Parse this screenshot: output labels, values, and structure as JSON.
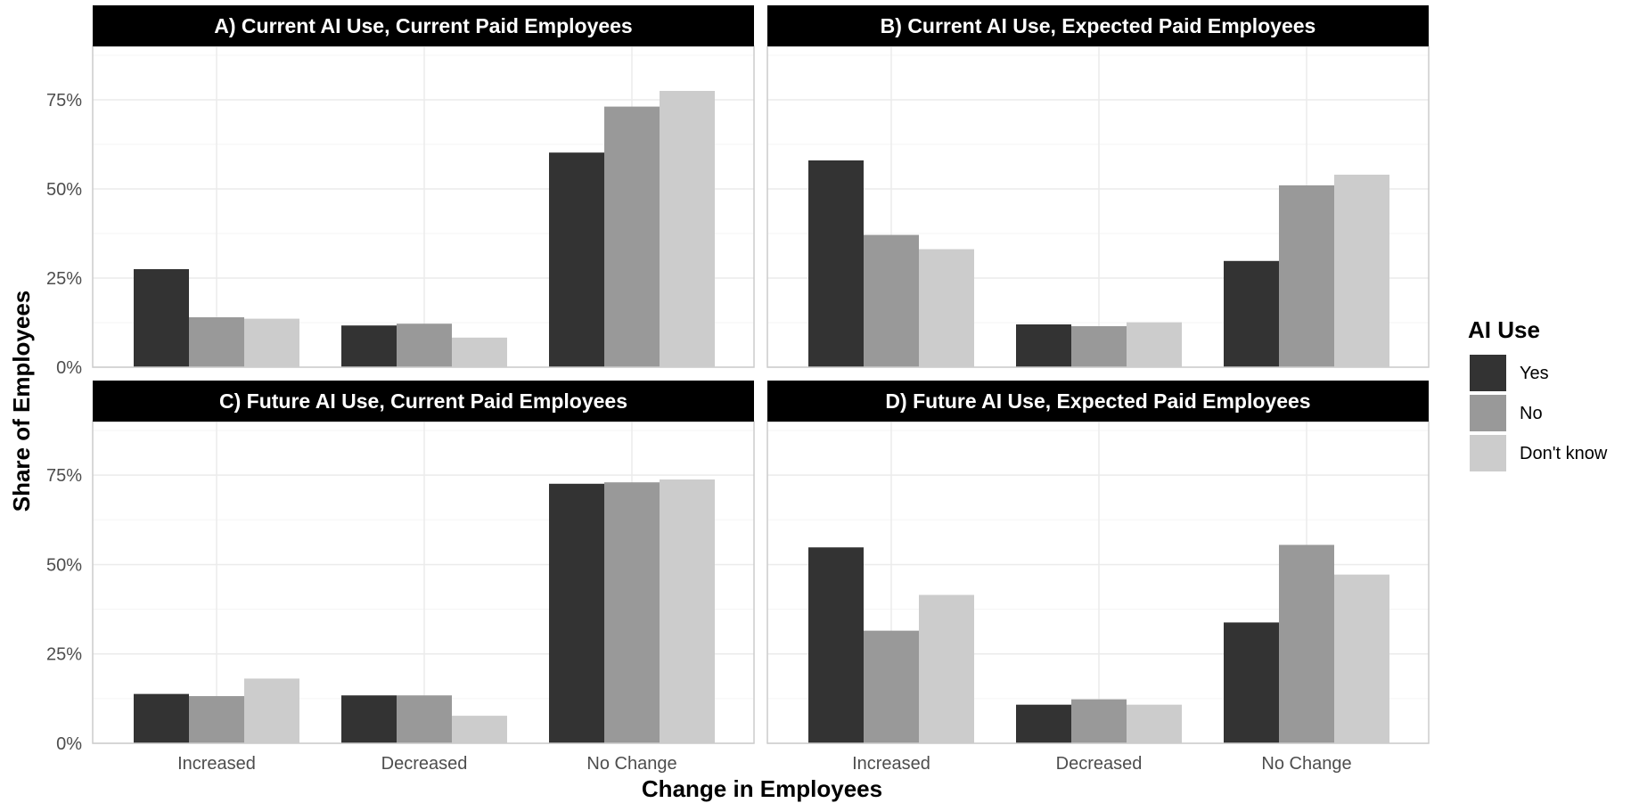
{
  "chart_data": [
    {
      "type": "bar",
      "title": "A) Current AI Use, Current Paid Employees",
      "categories": [
        "Increased",
        "Decreased",
        "No Change"
      ],
      "series": [
        {
          "name": "Yes",
          "values": [
            27.5,
            11.7,
            60.2
          ]
        },
        {
          "name": "No",
          "values": [
            14.0,
            12.2,
            73.1
          ]
        },
        {
          "name": "Don't know",
          "values": [
            13.6,
            8.3,
            77.5
          ]
        }
      ],
      "ylim": [
        0,
        90
      ]
    },
    {
      "type": "bar",
      "title": "B) Current AI Use, Expected Paid Employees",
      "categories": [
        "Increased",
        "Decreased",
        "No Change"
      ],
      "series": [
        {
          "name": "Yes",
          "values": [
            58.0,
            12.0,
            29.8
          ]
        },
        {
          "name": "No",
          "values": [
            37.1,
            11.5,
            51.0
          ]
        },
        {
          "name": "Don't know",
          "values": [
            33.1,
            12.6,
            54.0
          ]
        }
      ],
      "ylim": [
        0,
        90
      ]
    },
    {
      "type": "bar",
      "title": "C) Future AI Use, Current Paid Employees",
      "categories": [
        "Increased",
        "Decreased",
        "No Change"
      ],
      "series": [
        {
          "name": "Yes",
          "values": [
            13.8,
            13.4,
            72.6
          ]
        },
        {
          "name": "No",
          "values": [
            13.2,
            13.4,
            73.0
          ]
        },
        {
          "name": "Don't know",
          "values": [
            18.1,
            7.7,
            73.8
          ]
        }
      ],
      "ylim": [
        0,
        90
      ]
    },
    {
      "type": "bar",
      "title": "D) Future AI Use, Expected Paid Employees",
      "categories": [
        "Increased",
        "Decreased",
        "No Change"
      ],
      "series": [
        {
          "name": "Yes",
          "values": [
            54.8,
            10.8,
            33.8
          ]
        },
        {
          "name": "No",
          "values": [
            31.5,
            12.3,
            55.5
          ]
        },
        {
          "name": "Don't know",
          "values": [
            41.5,
            10.8,
            47.2
          ]
        }
      ],
      "ylim": [
        0,
        90
      ]
    }
  ],
  "axes": {
    "xlabel": "Change in Employees",
    "ylabel": "Share of Employees",
    "yticks": [
      0,
      25,
      50,
      75
    ],
    "ytick_labels": [
      "0%",
      "25%",
      "50%",
      "75%"
    ]
  },
  "legend": {
    "title": "AI Use",
    "position": "right",
    "items": [
      {
        "label": "Yes",
        "color": "#333333"
      },
      {
        "label": "No",
        "color": "#999999"
      },
      {
        "label": "Don't know",
        "color": "#cccccc"
      }
    ]
  },
  "style": {
    "strip_fill": "#000000",
    "grid_major": "#ebebeb",
    "grid_minor": "#f5f5f5",
    "panel_border": "#cccccc"
  }
}
